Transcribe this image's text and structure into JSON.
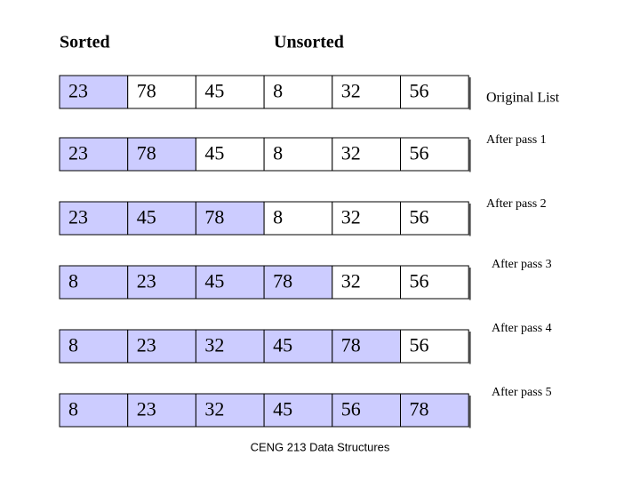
{
  "header": {
    "sorted": "Sorted",
    "unsorted": "Unsorted"
  },
  "rows": [
    {
      "cells": [
        23,
        78,
        45,
        8,
        32,
        56
      ],
      "label": "Original List"
    },
    {
      "cells": [
        23,
        78,
        45,
        8,
        32,
        56
      ],
      "label": "After pass 1"
    },
    {
      "cells": [
        23,
        45,
        78,
        8,
        32,
        56
      ],
      "label": "After pass 2"
    },
    {
      "cells": [
        8,
        23,
        45,
        78,
        32,
        56
      ],
      "label": "After pass 3"
    },
    {
      "cells": [
        8,
        23,
        32,
        45,
        78,
        56
      ],
      "label": "After pass 4"
    },
    {
      "cells": [
        8,
        23,
        32,
        45,
        56,
        78
      ],
      "label": "After pass 5"
    }
  ],
  "footer": "CENG 213 Data Structures"
}
